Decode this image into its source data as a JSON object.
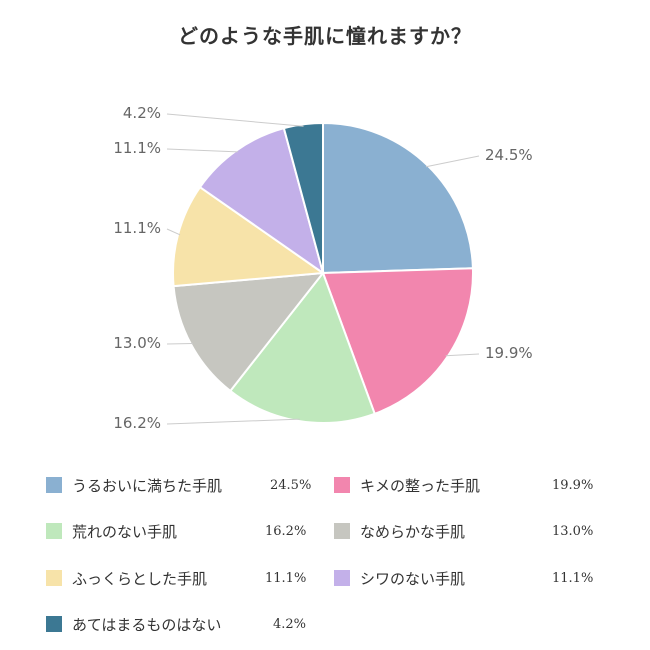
{
  "chart_data": {
    "type": "pie",
    "title": "どのような手肌に憧れますか？",
    "categories": [
      "うるおいに満ちた手肌",
      "キメの整った手肌",
      "荒れのない手肌",
      "なめらかな手肌",
      "ふっくらとした手肌",
      "シワのない手肌",
      "あてはまるものはない"
    ],
    "values": [
      24.5,
      19.9,
      16.2,
      13.0,
      11.1,
      11.1,
      4.2
    ],
    "value_labels": [
      "24.5%",
      "19.9%",
      "16.2%",
      "13.0%",
      "11.1%",
      "11.1%",
      "4.2%"
    ],
    "colors": [
      "#8AB0D1",
      "#F286AE",
      "#BFE8BC",
      "#C6C6C0",
      "#F7E3A9",
      "#C3B0E9",
      "#3C7893"
    ],
    "legend_position": "bottom",
    "start_angle": "12 o'clock, clockwise"
  }
}
